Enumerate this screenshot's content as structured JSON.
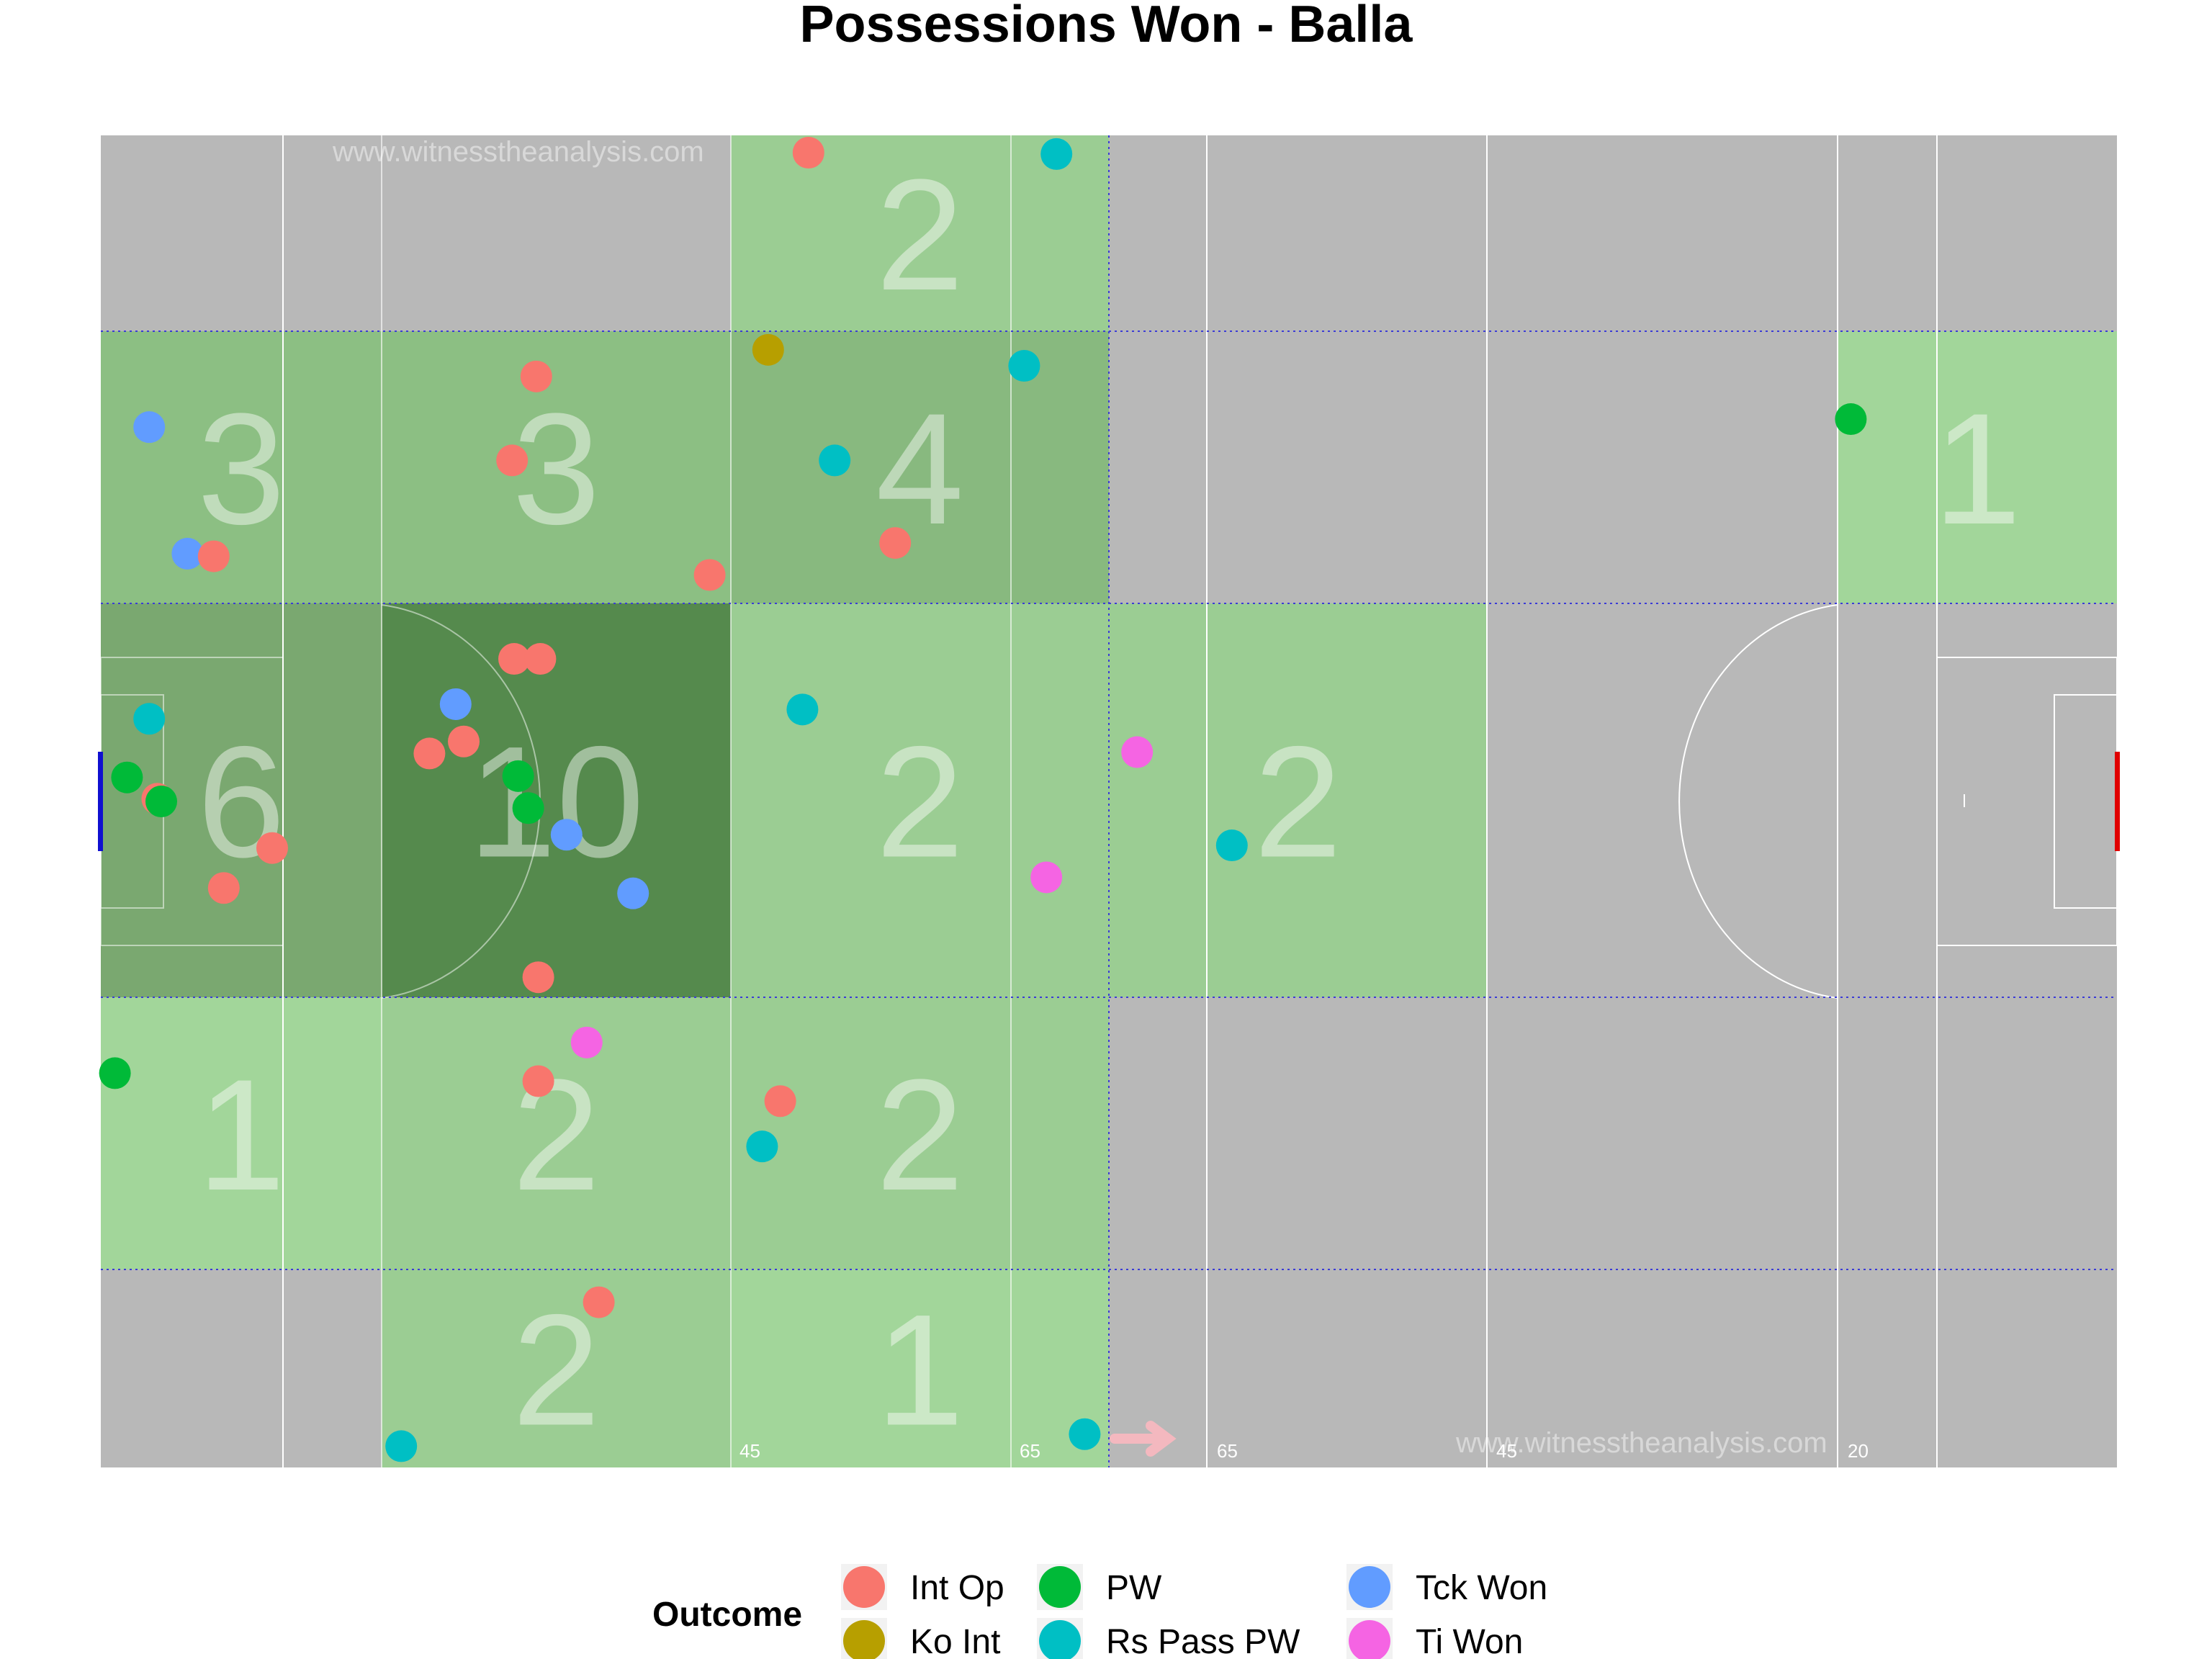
{
  "chart_data": {
    "type": "scatter",
    "title": "Possessions Won - Balla",
    "watermarks": [
      "www.witnesstheanalysis.com",
      "www.witnesstheanalysis.com"
    ],
    "pitch_line_labels": [
      "45",
      "65",
      "65",
      "45",
      "20"
    ],
    "legend": {
      "title": "Outcome",
      "placement": "bottom",
      "entries": [
        {
          "label": "Int Op",
          "color": "#F8766D"
        },
        {
          "label": "Ko Int",
          "color": "#B79F00"
        },
        {
          "label": "PW",
          "color": "#00BA38"
        },
        {
          "label": "Rs Pass PW",
          "color": "#00BFC4"
        },
        {
          "label": "Tck Won",
          "color": "#619CFF"
        },
        {
          "label": "Ti Won",
          "color": "#F564E3"
        }
      ]
    },
    "zones": [
      {
        "col": 0,
        "row": 1,
        "count": "3",
        "fill": "#8cbf83"
      },
      {
        "col": 1,
        "row": 1,
        "count": "3",
        "fill": "#8cbf83"
      },
      {
        "col": 2,
        "row": 0,
        "count": "2",
        "fill": "#9bcd93"
      },
      {
        "col": 2,
        "row": 1,
        "count": "4",
        "fill": "#88b97f"
      },
      {
        "col": 0,
        "row": 2,
        "count": "6",
        "fill": "#7aa870"
      },
      {
        "col": 1,
        "row": 2,
        "count": "10",
        "fill": "#558a4d"
      },
      {
        "col": 2,
        "row": 2,
        "count": "2",
        "fill": "#9bcd93"
      },
      {
        "col": 3,
        "row": 2,
        "count": "2",
        "fill": "#9bcd93"
      },
      {
        "col": 4,
        "row": 1,
        "count": "1",
        "fill": "#a2d69a"
      },
      {
        "col": 0,
        "row": 3,
        "count": "1",
        "fill": "#a2d69a"
      },
      {
        "col": 1,
        "row": 3,
        "count": "2",
        "fill": "#9bcd93"
      },
      {
        "col": 2,
        "row": 3,
        "count": "2",
        "fill": "#9bcd93"
      },
      {
        "col": 1,
        "row": 4,
        "count": "2",
        "fill": "#9bcd93"
      },
      {
        "col": 2,
        "row": 4,
        "count": "1",
        "fill": "#a2d69a"
      }
    ],
    "points": [
      {
        "x": 0.351,
        "y": 0.987,
        "o": "Int Op"
      },
      {
        "x": 0.474,
        "y": 0.986,
        "o": "Rs Pass PW"
      },
      {
        "x": 0.331,
        "y": 0.839,
        "o": "Ko Int"
      },
      {
        "x": 0.458,
        "y": 0.827,
        "o": "Rs Pass PW"
      },
      {
        "x": 0.216,
        "y": 0.819,
        "o": "Int Op"
      },
      {
        "x": 0.868,
        "y": 0.787,
        "o": "PW"
      },
      {
        "x": 0.024,
        "y": 0.781,
        "o": "Tck Won"
      },
      {
        "x": 0.204,
        "y": 0.756,
        "o": "Int Op"
      },
      {
        "x": 0.364,
        "y": 0.756,
        "o": "Rs Pass PW"
      },
      {
        "x": 0.394,
        "y": 0.694,
        "o": "Int Op"
      },
      {
        "x": 0.043,
        "y": 0.686,
        "o": "Tck Won"
      },
      {
        "x": 0.056,
        "y": 0.684,
        "o": "Int Op"
      },
      {
        "x": 0.302,
        "y": 0.67,
        "o": "Int Op"
      },
      {
        "x": 0.205,
        "y": 0.607,
        "o": "Int Op"
      },
      {
        "x": 0.218,
        "y": 0.607,
        "o": "Int Op"
      },
      {
        "x": 0.176,
        "y": 0.573,
        "o": "Tck Won"
      },
      {
        "x": 0.348,
        "y": 0.569,
        "o": "Rs Pass PW"
      },
      {
        "x": 0.024,
        "y": 0.562,
        "o": "Rs Pass PW"
      },
      {
        "x": 0.18,
        "y": 0.545,
        "o": "Int Op"
      },
      {
        "x": 0.163,
        "y": 0.536,
        "o": "Int Op"
      },
      {
        "x": 0.514,
        "y": 0.537,
        "o": "Ti Won"
      },
      {
        "x": 0.207,
        "y": 0.519,
        "o": "PW"
      },
      {
        "x": 0.013,
        "y": 0.518,
        "o": "PW"
      },
      {
        "x": 0.028,
        "y": 0.502,
        "o": "Int Op"
      },
      {
        "x": 0.03,
        "y": 0.5,
        "o": "PW"
      },
      {
        "x": 0.212,
        "y": 0.495,
        "o": "PW"
      },
      {
        "x": 0.231,
        "y": 0.475,
        "o": "Tck Won"
      },
      {
        "x": 0.085,
        "y": 0.465,
        "o": "Int Op"
      },
      {
        "x": 0.561,
        "y": 0.467,
        "o": "Rs Pass PW"
      },
      {
        "x": 0.061,
        "y": 0.435,
        "o": "Int Op"
      },
      {
        "x": 0.264,
        "y": 0.431,
        "o": "Tck Won"
      },
      {
        "x": 0.469,
        "y": 0.443,
        "o": "Ti Won"
      },
      {
        "x": 0.217,
        "y": 0.368,
        "o": "Int Op"
      },
      {
        "x": 0.241,
        "y": 0.319,
        "o": "Ti Won"
      },
      {
        "x": 0.007,
        "y": 0.296,
        "o": "PW"
      },
      {
        "x": 0.217,
        "y": 0.29,
        "o": "Int Op"
      },
      {
        "x": 0.337,
        "y": 0.275,
        "o": "Int Op"
      },
      {
        "x": 0.328,
        "y": 0.241,
        "o": "Rs Pass PW"
      },
      {
        "x": 0.247,
        "y": 0.124,
        "o": "Int Op"
      },
      {
        "x": 0.149,
        "y": 0.016,
        "o": "Rs Pass PW"
      },
      {
        "x": 0.488,
        "y": 0.025,
        "o": "Rs Pass PW"
      }
    ]
  }
}
